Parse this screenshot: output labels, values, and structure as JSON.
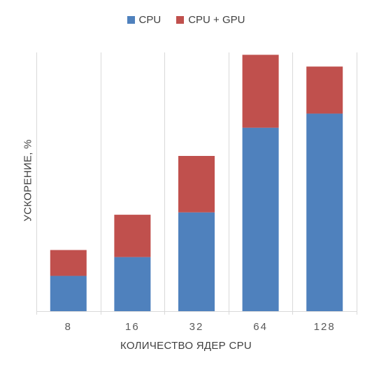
{
  "chart_data": {
    "type": "bar",
    "stacked": true,
    "categories": [
      "8",
      "16",
      "32",
      "64",
      "128"
    ],
    "series": [
      {
        "name": "CPU",
        "values": [
          15,
          23,
          42,
          78,
          84
        ],
        "color": "#4f81bd"
      },
      {
        "name": "CPU + GPU",
        "values": [
          11,
          18,
          24,
          31,
          20
        ],
        "color": "#c0504d"
      }
    ],
    "title": "",
    "xlabel": "КОЛИЧЕСТВО ЯДЕР CPU",
    "ylabel": "УСКОРЕНИЕ, %",
    "ylim": [
      0,
      110
    ],
    "grid": {
      "vertical_category_separators": true,
      "horizontal": false
    },
    "legend_position": "top-center",
    "y_tick_labels_shown": false
  }
}
